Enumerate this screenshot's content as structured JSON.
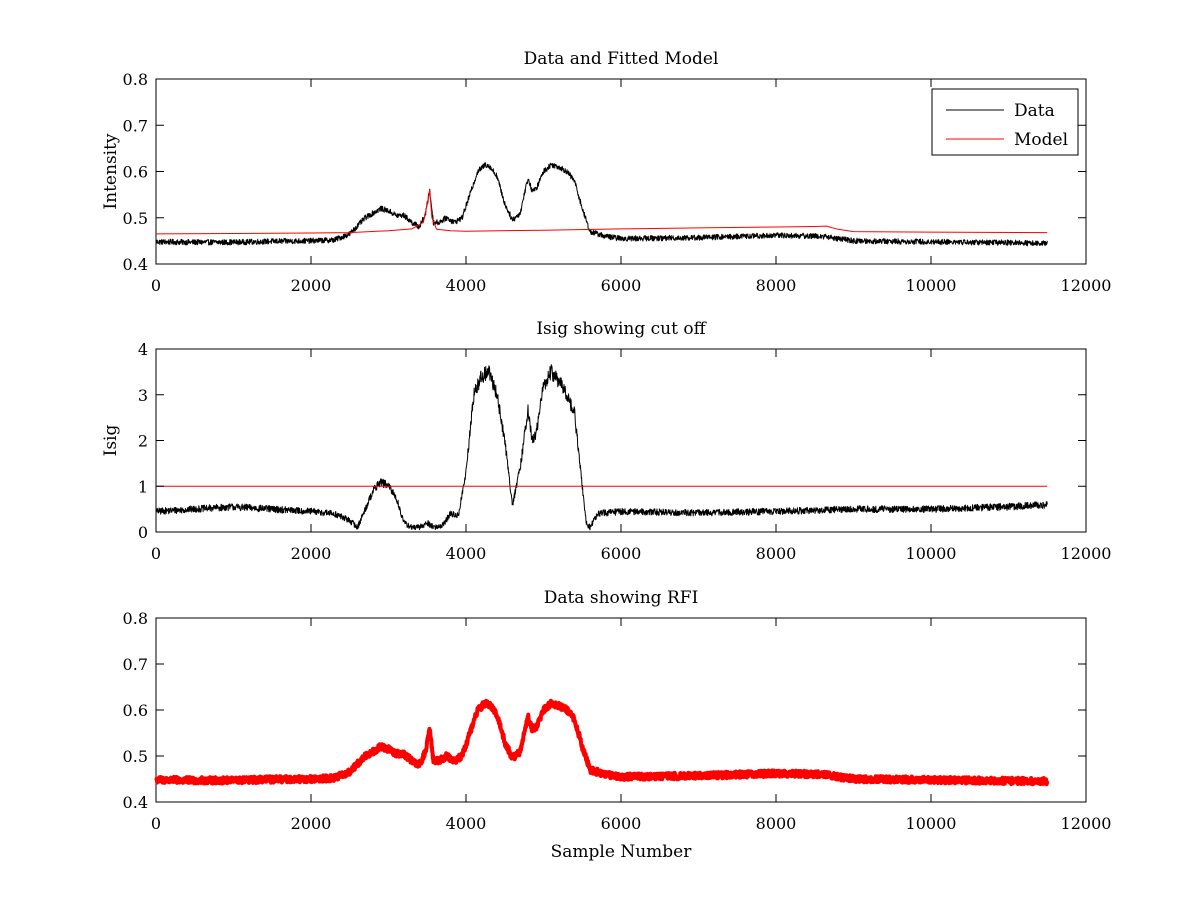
{
  "chart_data": [
    {
      "type": "line",
      "title": "Data and Fitted Model",
      "xlabel": "",
      "ylabel": "Intensity",
      "xlim": [
        0,
        12000
      ],
      "ylim": [
        0.4,
        0.8
      ],
      "xticks": [
        0,
        2000,
        4000,
        6000,
        8000,
        10000,
        12000
      ],
      "yticks": [
        0.4,
        0.5,
        0.6,
        0.7,
        0.8
      ],
      "grid": false,
      "legend": {
        "placement": "top-right",
        "entries": [
          "Data",
          "Model"
        ]
      },
      "series": [
        {
          "name": "Data",
          "color": "#000000",
          "noise": 0.006,
          "x": [
            0,
            500,
            1000,
            1500,
            2000,
            2300,
            2500,
            2700,
            2900,
            3000,
            3100,
            3200,
            3300,
            3400,
            3480,
            3530,
            3580,
            3650,
            3750,
            3850,
            3950,
            4050,
            4150,
            4250,
            4300,
            4400,
            4500,
            4600,
            4700,
            4750,
            4800,
            4850,
            4900,
            5000,
            5100,
            5200,
            5300,
            5400,
            5500,
            5600,
            5800,
            6000,
            7000,
            8000,
            8600,
            9000,
            10000,
            11000,
            11500
          ],
          "y": [
            0.448,
            0.447,
            0.447,
            0.449,
            0.45,
            0.452,
            0.465,
            0.5,
            0.52,
            0.515,
            0.505,
            0.505,
            0.49,
            0.48,
            0.51,
            0.56,
            0.49,
            0.49,
            0.5,
            0.49,
            0.5,
            0.55,
            0.6,
            0.615,
            0.612,
            0.59,
            0.53,
            0.495,
            0.51,
            0.55,
            0.585,
            0.56,
            0.56,
            0.6,
            0.615,
            0.61,
            0.6,
            0.58,
            0.52,
            0.47,
            0.46,
            0.455,
            0.457,
            0.462,
            0.46,
            0.45,
            0.448,
            0.446,
            0.445
          ]
        },
        {
          "name": "Model",
          "color": "#ff0000",
          "noise": 0,
          "x": [
            0,
            1000,
            2000,
            2500,
            3000,
            3300,
            3450,
            3500,
            3530,
            3560,
            3620,
            3800,
            4000,
            5000,
            6000,
            7000,
            8000,
            8500,
            8650,
            8800,
            9000,
            10000,
            11500
          ],
          "y": [
            0.465,
            0.466,
            0.467,
            0.468,
            0.472,
            0.476,
            0.49,
            0.53,
            0.56,
            0.5,
            0.475,
            0.472,
            0.471,
            0.473,
            0.476,
            0.478,
            0.48,
            0.481,
            0.482,
            0.475,
            0.47,
            0.469,
            0.468
          ]
        }
      ]
    },
    {
      "type": "line",
      "title": "Isig showing cut off",
      "xlabel": "",
      "ylabel": "Isig",
      "xlim": [
        0,
        12000
      ],
      "ylim": [
        0,
        4
      ],
      "xticks": [
        0,
        2000,
        4000,
        6000,
        8000,
        10000,
        12000
      ],
      "yticks": [
        0,
        1,
        2,
        3,
        4
      ],
      "grid": false,
      "series": [
        {
          "color": "#000000",
          "noise": 0.12,
          "x": [
            0,
            500,
            1000,
            1500,
            2000,
            2300,
            2500,
            2600,
            2700,
            2800,
            2900,
            3000,
            3100,
            3200,
            3300,
            3400,
            3500,
            3600,
            3700,
            3800,
            3900,
            4000,
            4100,
            4200,
            4300,
            4400,
            4500,
            4600,
            4700,
            4800,
            4850,
            4900,
            5000,
            5100,
            5200,
            5300,
            5400,
            5500,
            5550,
            5600,
            5700,
            6000,
            7000,
            8000,
            9000,
            10000,
            11000,
            11500
          ],
          "y": [
            0.45,
            0.5,
            0.55,
            0.5,
            0.45,
            0.4,
            0.25,
            0.1,
            0.5,
            0.9,
            1.1,
            1.0,
            0.75,
            0.2,
            0.1,
            0.1,
            0.2,
            0.1,
            0.15,
            0.4,
            0.35,
            1.3,
            3.0,
            3.4,
            3.5,
            3.0,
            2.0,
            0.6,
            1.4,
            2.7,
            2.0,
            2.1,
            3.2,
            3.5,
            3.3,
            3.0,
            2.6,
            1.0,
            0.2,
            0.1,
            0.4,
            0.45,
            0.42,
            0.45,
            0.5,
            0.5,
            0.55,
            0.6
          ]
        },
        {
          "color": "#ff0000",
          "noise": 0,
          "x": [
            0,
            11500
          ],
          "y": [
            1,
            1
          ]
        }
      ]
    },
    {
      "type": "line",
      "title": "Data showing RFI",
      "xlabel": "Sample Number",
      "ylabel": "",
      "xlim": [
        0,
        12000
      ],
      "ylim": [
        0.4,
        0.8
      ],
      "xticks": [
        0,
        2000,
        4000,
        6000,
        8000,
        10000,
        12000
      ],
      "yticks": [
        0.4,
        0.5,
        0.6,
        0.7,
        0.8
      ],
      "grid": false,
      "series": [
        {
          "color": "#ff0000",
          "noise": 0.007,
          "thick": true,
          "x": [
            0,
            500,
            1000,
            1500,
            2000,
            2300,
            2500,
            2700,
            2900,
            3000,
            3100,
            3200,
            3300,
            3400,
            3480,
            3530,
            3580,
            3650,
            3750,
            3850,
            3950,
            4050,
            4150,
            4250,
            4300,
            4400,
            4500,
            4600,
            4700,
            4750,
            4800,
            4850,
            4900,
            5000,
            5100,
            5200,
            5300,
            5400,
            5500,
            5600,
            5800,
            6000,
            7000,
            8000,
            8600,
            9000,
            10000,
            11000,
            11500
          ],
          "y": [
            0.448,
            0.447,
            0.447,
            0.449,
            0.45,
            0.452,
            0.465,
            0.5,
            0.52,
            0.515,
            0.505,
            0.505,
            0.49,
            0.48,
            0.51,
            0.56,
            0.49,
            0.49,
            0.5,
            0.49,
            0.5,
            0.55,
            0.6,
            0.615,
            0.612,
            0.59,
            0.53,
            0.495,
            0.51,
            0.55,
            0.585,
            0.56,
            0.56,
            0.6,
            0.615,
            0.61,
            0.6,
            0.58,
            0.52,
            0.47,
            0.46,
            0.455,
            0.457,
            0.462,
            0.46,
            0.45,
            0.448,
            0.446,
            0.445
          ]
        }
      ]
    }
  ]
}
